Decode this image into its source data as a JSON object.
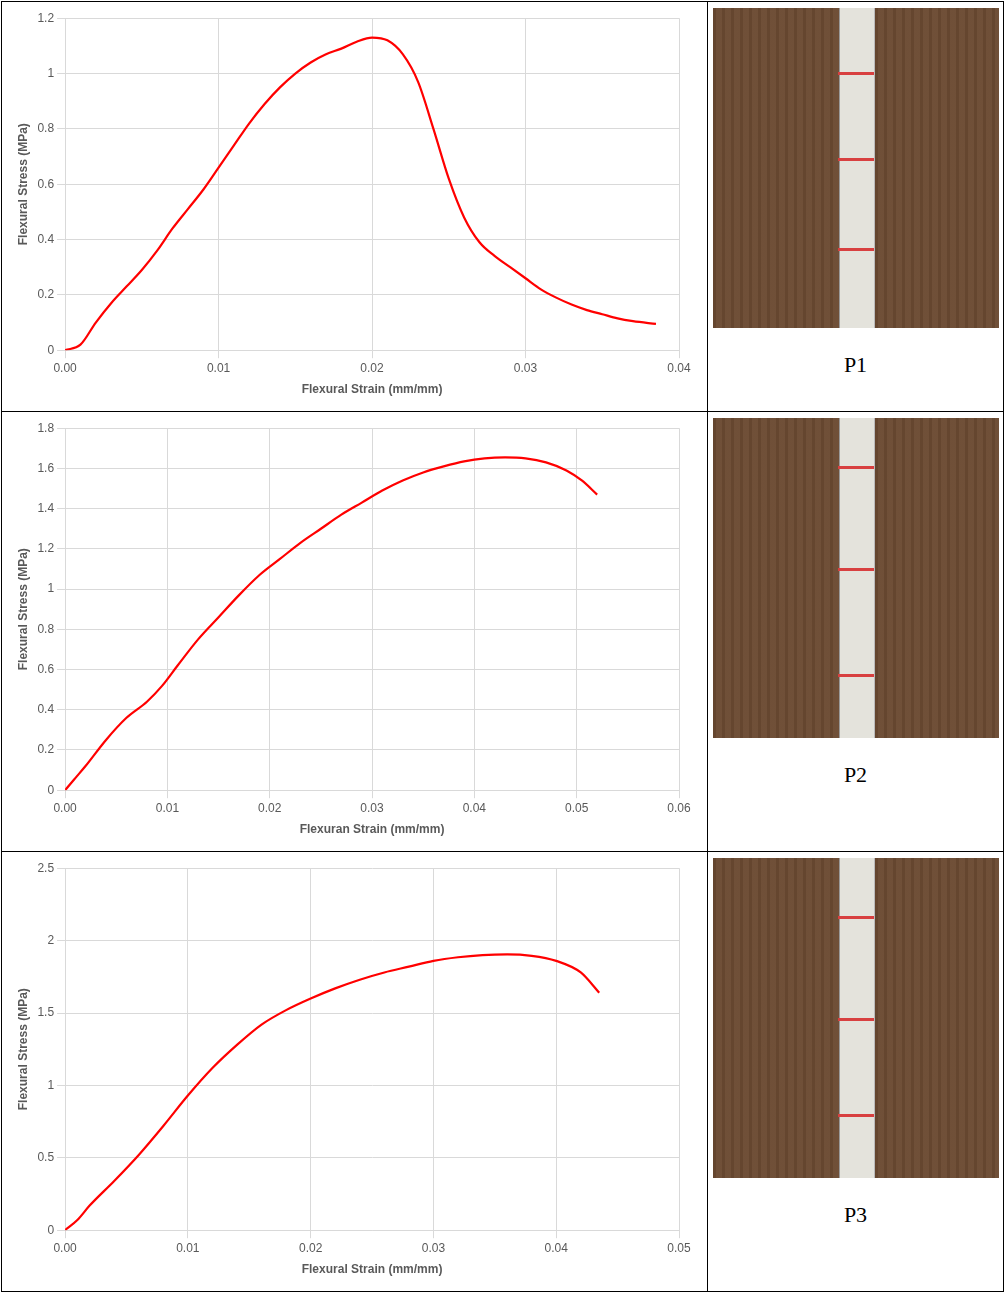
{
  "chart_data": [
    {
      "type": "line",
      "x_label": "Flexural Strain (mm/mm)",
      "y_label": "Flexural Stress (MPa)",
      "series": [
        {
          "color": "#ff0000",
          "marker": "none",
          "line_style": "solid",
          "x": [
            0,
            0.001,
            0.002,
            0.003,
            0.004,
            0.005,
            0.006,
            0.007,
            0.008,
            0.009,
            0.01,
            0.011,
            0.012,
            0.013,
            0.014,
            0.015,
            0.016,
            0.017,
            0.018,
            0.019,
            0.02,
            0.021,
            0.022,
            0.023,
            0.024,
            0.025,
            0.026,
            0.027,
            0.028,
            0.029,
            0.03,
            0.031,
            0.032,
            0.033,
            0.034,
            0.035,
            0.036,
            0.037,
            0.0385
          ],
          "values": [
            0,
            0.02,
            0.1,
            0.17,
            0.23,
            0.29,
            0.36,
            0.44,
            0.51,
            0.58,
            0.66,
            0.74,
            0.82,
            0.89,
            0.95,
            1.0,
            1.04,
            1.07,
            1.09,
            1.115,
            1.13,
            1.12,
            1.07,
            0.97,
            0.8,
            0.62,
            0.48,
            0.39,
            0.34,
            0.3,
            0.26,
            0.22,
            0.19,
            0.165,
            0.145,
            0.13,
            0.115,
            0.105,
            0.095
          ]
        }
      ],
      "xlim": [
        0,
        0.04
      ],
      "xticks": [
        {
          "value": 0,
          "label": "0.00"
        },
        {
          "value": 0.01,
          "label": "0.01"
        },
        {
          "value": 0.02,
          "label": "0.02"
        },
        {
          "value": 0.03,
          "label": "0.03"
        },
        {
          "value": 0.04,
          "label": "0.04"
        }
      ],
      "ylim": [
        0,
        1.2
      ],
      "yticks": [
        0,
        0.2,
        0.4,
        0.6,
        0.8,
        1,
        1.2
      ],
      "grid": true
    },
    {
      "type": "line",
      "x_label": "Flexuran Strain (mm/mm)",
      "y_label": "Flexural Stress (MPa)",
      "series": [
        {
          "color": "#ff0000",
          "marker": "none",
          "line_style": "solid",
          "x": [
            0,
            0.001,
            0.002,
            0.004,
            0.006,
            0.008,
            0.0095,
            0.011,
            0.013,
            0.015,
            0.017,
            0.019,
            0.021,
            0.023,
            0.025,
            0.027,
            0.029,
            0.031,
            0.033,
            0.035,
            0.037,
            0.039,
            0.041,
            0.043,
            0.045,
            0.047,
            0.049,
            0.0505,
            0.052
          ],
          "values": [
            0,
            0.06,
            0.12,
            0.25,
            0.36,
            0.44,
            0.52,
            0.62,
            0.75,
            0.86,
            0.97,
            1.07,
            1.15,
            1.23,
            1.3,
            1.37,
            1.43,
            1.49,
            1.54,
            1.58,
            1.61,
            1.635,
            1.65,
            1.655,
            1.65,
            1.63,
            1.59,
            1.54,
            1.47
          ]
        }
      ],
      "xlim": [
        0,
        0.06
      ],
      "xticks": [
        {
          "value": 0,
          "label": "0.00"
        },
        {
          "value": 0.01,
          "label": "0.01"
        },
        {
          "value": 0.02,
          "label": "0.02"
        },
        {
          "value": 0.03,
          "label": "0.03"
        },
        {
          "value": 0.04,
          "label": "0.04"
        },
        {
          "value": 0.05,
          "label": "0.05"
        },
        {
          "value": 0.06,
          "label": "0.06"
        }
      ],
      "ylim": [
        0,
        1.8
      ],
      "yticks": [
        0,
        0.2,
        0.4,
        0.6,
        0.8,
        1,
        1.2,
        1.4,
        1.6,
        1.8
      ],
      "grid": true
    },
    {
      "type": "line",
      "x_label": "Flexural Strain (mm/mm)",
      "y_label": "Flexural Stress (MPa)",
      "series": [
        {
          "color": "#ff0000",
          "marker": "none",
          "line_style": "solid",
          "x": [
            0,
            0.001,
            0.002,
            0.004,
            0.006,
            0.008,
            0.01,
            0.012,
            0.014,
            0.016,
            0.018,
            0.02,
            0.022,
            0.024,
            0.026,
            0.028,
            0.03,
            0.032,
            0.034,
            0.036,
            0.038,
            0.04,
            0.042,
            0.0435
          ],
          "values": [
            0,
            0.07,
            0.17,
            0.34,
            0.52,
            0.72,
            0.93,
            1.12,
            1.28,
            1.42,
            1.52,
            1.6,
            1.67,
            1.73,
            1.78,
            1.82,
            1.86,
            1.885,
            1.9,
            1.905,
            1.895,
            1.86,
            1.78,
            1.64
          ]
        }
      ],
      "xlim": [
        0,
        0.05
      ],
      "xticks": [
        {
          "value": 0,
          "label": "0.00"
        },
        {
          "value": 0.01,
          "label": "0.01"
        },
        {
          "value": 0.02,
          "label": "0.02"
        },
        {
          "value": 0.03,
          "label": "0.03"
        },
        {
          "value": 0.04,
          "label": "0.04"
        },
        {
          "value": 0.05,
          "label": "0.05"
        }
      ],
      "ylim": [
        0,
        2.5
      ],
      "yticks": [
        0,
        0.5,
        1,
        1.5,
        2,
        2.5
      ],
      "grid": true
    }
  ],
  "captions": [
    "P1",
    "P2",
    "P3"
  ]
}
